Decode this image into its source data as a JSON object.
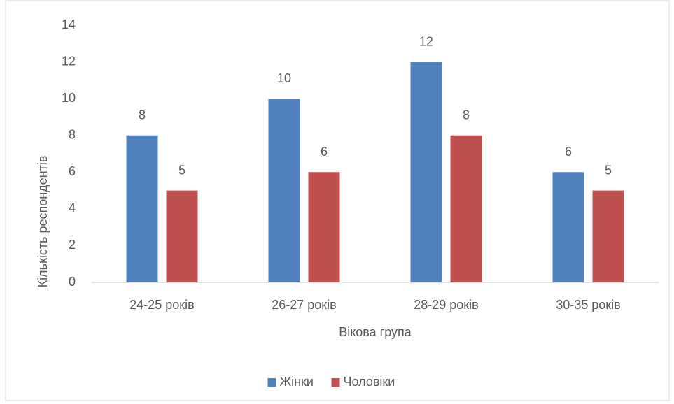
{
  "chart_data": {
    "type": "bar",
    "categories": [
      "24-25 років",
      "26-27 років",
      "28-29 років",
      "30-35 років"
    ],
    "series": [
      {
        "name": "Жінки",
        "color": "#4f81bd",
        "values": [
          8,
          10,
          12,
          6
        ]
      },
      {
        "name": "Чоловіки",
        "color": "#c0504d",
        "values": [
          5,
          6,
          8,
          5
        ]
      }
    ],
    "xlabel": "Вікова група",
    "ylabel": "Кількість респондентів",
    "ylim": [
      0,
      14
    ],
    "yticks": [
      0,
      2,
      4,
      6,
      8,
      10,
      12,
      14
    ],
    "grid": false,
    "legend": "bottom"
  }
}
